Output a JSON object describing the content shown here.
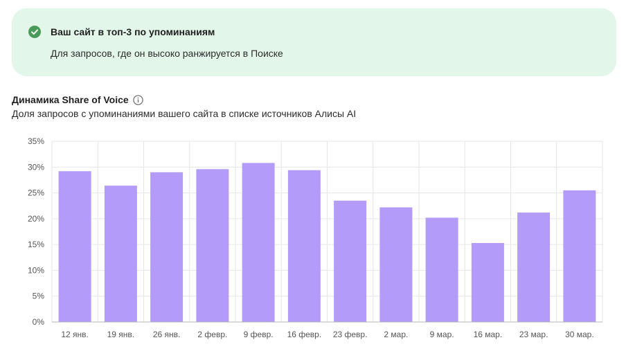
{
  "banner": {
    "title": "Ваш сайт в топ-3 по упоминаниям",
    "subtitle": "Для запросов, где он высоко ранжируется в Поиске",
    "icon": "check-circle-icon",
    "accent_color": "#4a9b5a",
    "background_color": "#e2f6ea"
  },
  "section": {
    "title": "Динамика Share of Voice",
    "subtitle": "Доля запросов с упоминаниями вашего сайта в списке источников Алисы AI",
    "info_icon": "info-icon"
  },
  "chart_data": {
    "type": "bar",
    "categories": [
      "12 янв.",
      "19 янв.",
      "26 янв.",
      "2 февр.",
      "9 февр.",
      "16 февр.",
      "23 февр.",
      "2 мар.",
      "9 мар.",
      "16 мар.",
      "23 мар.",
      "30 мар."
    ],
    "values": [
      29.2,
      26.4,
      29.0,
      29.6,
      30.8,
      29.4,
      23.5,
      22.2,
      20.2,
      15.3,
      21.2,
      25.5
    ],
    "ylim": [
      0,
      35
    ],
    "yticks": [
      "0%",
      "5%",
      "10%",
      "15%",
      "20%",
      "25%",
      "30%",
      "35%"
    ],
    "ytick_values": [
      0,
      5,
      10,
      15,
      20,
      25,
      30,
      35
    ],
    "bar_color": "#b39cf9",
    "grid": true
  }
}
